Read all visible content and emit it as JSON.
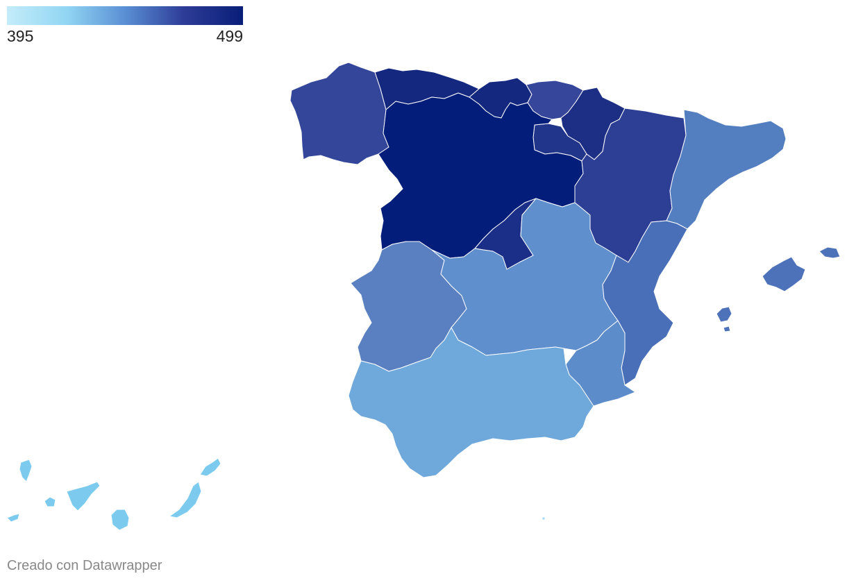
{
  "legend": {
    "min_label": "395",
    "max_label": "499",
    "min_value": 395,
    "max_value": 499,
    "gradient_colors": [
      "#c4ecfa",
      "#92d6f3",
      "#5a8fd4",
      "#2d3c97",
      "#081e78"
    ]
  },
  "map_regions": [
    {
      "id": "galicia",
      "color": "#33469a"
    },
    {
      "id": "asturias",
      "color": "#14287f"
    },
    {
      "id": "cantabria",
      "color": "#14287f"
    },
    {
      "id": "pais-vasco",
      "color": "#36479b"
    },
    {
      "id": "navarra",
      "color": "#1d2e85"
    },
    {
      "id": "la-rioja",
      "color": "#21358a"
    },
    {
      "id": "castilla-y-leon",
      "color": "#031d7a"
    },
    {
      "id": "aragon",
      "color": "#2d3e95"
    },
    {
      "id": "cataluna",
      "color": "#537ebf"
    },
    {
      "id": "madrid",
      "color": "#1c2f88"
    },
    {
      "id": "extremadura",
      "color": "#5a80c2"
    },
    {
      "id": "castilla-la-mancha",
      "color": "#5f8fcc"
    },
    {
      "id": "comunidad-valenciana",
      "color": "#4a6fb9"
    },
    {
      "id": "murcia",
      "color": "#5d8cca"
    },
    {
      "id": "andalucia",
      "color": "#6fa8da"
    },
    {
      "id": "islas-baleares",
      "color": "#4e72ba"
    },
    {
      "id": "canarias",
      "color": "#7ccbef"
    },
    {
      "id": "melilla",
      "color": "#9fd8f3"
    }
  ],
  "credit": "Creado con Datawrapper"
}
